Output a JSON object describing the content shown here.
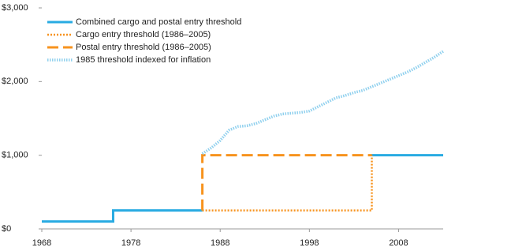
{
  "chart_data": {
    "type": "line",
    "xlim": [
      1968,
      2013
    ],
    "xticks": [
      1968,
      1978,
      1988,
      1998,
      2008
    ],
    "ylim": [
      0,
      3000
    ],
    "yticks": [
      {
        "value": 0,
        "label": "$0"
      },
      {
        "value": 1000,
        "label": "$1,000"
      },
      {
        "value": 2000,
        "label": "$2,000"
      },
      {
        "value": 3000,
        "label": "$3,000"
      }
    ],
    "legend": "top-left",
    "series": [
      {
        "name": "Combined cargo and postal entry threshold",
        "color": "#29abe2",
        "style": "solid",
        "x": [
          1968,
          1976,
          1976,
          1986,
          1995,
          2005,
          2013
        ],
        "values": [
          100,
          100,
          250,
          250,
          null,
          1000,
          1000
        ]
      },
      {
        "name": "Cargo entry threshold (1986–2005)",
        "color": "#f7931e",
        "style": "dotted",
        "x": [
          1986,
          2005,
          2005
        ],
        "values": [
          250,
          250,
          1000
        ]
      },
      {
        "name": "Postal entry threshold (1986–2005)",
        "color": "#f7931e",
        "style": "dashed",
        "x": [
          1986,
          1986,
          2005
        ],
        "values": [
          250,
          1000,
          1000
        ]
      },
      {
        "name": "1985 threshold indexed for inflation",
        "color": "#8fd0ee",
        "style": "dotted-wide",
        "x": [
          1986,
          1987,
          1988,
          1989,
          1990,
          1991,
          1992,
          1993,
          1994,
          1995,
          1996,
          1997,
          1998,
          1999,
          2000,
          2001,
          2002,
          2003,
          2004,
          2005,
          2006,
          2007,
          2008,
          2009,
          2010,
          2011,
          2012,
          2013
        ],
        "values": [
          1020,
          1100,
          1200,
          1340,
          1390,
          1400,
          1430,
          1480,
          1530,
          1560,
          1570,
          1580,
          1600,
          1660,
          1720,
          1780,
          1810,
          1850,
          1880,
          1930,
          1980,
          2030,
          2080,
          2130,
          2190,
          2260,
          2330,
          2410
        ]
      }
    ]
  }
}
